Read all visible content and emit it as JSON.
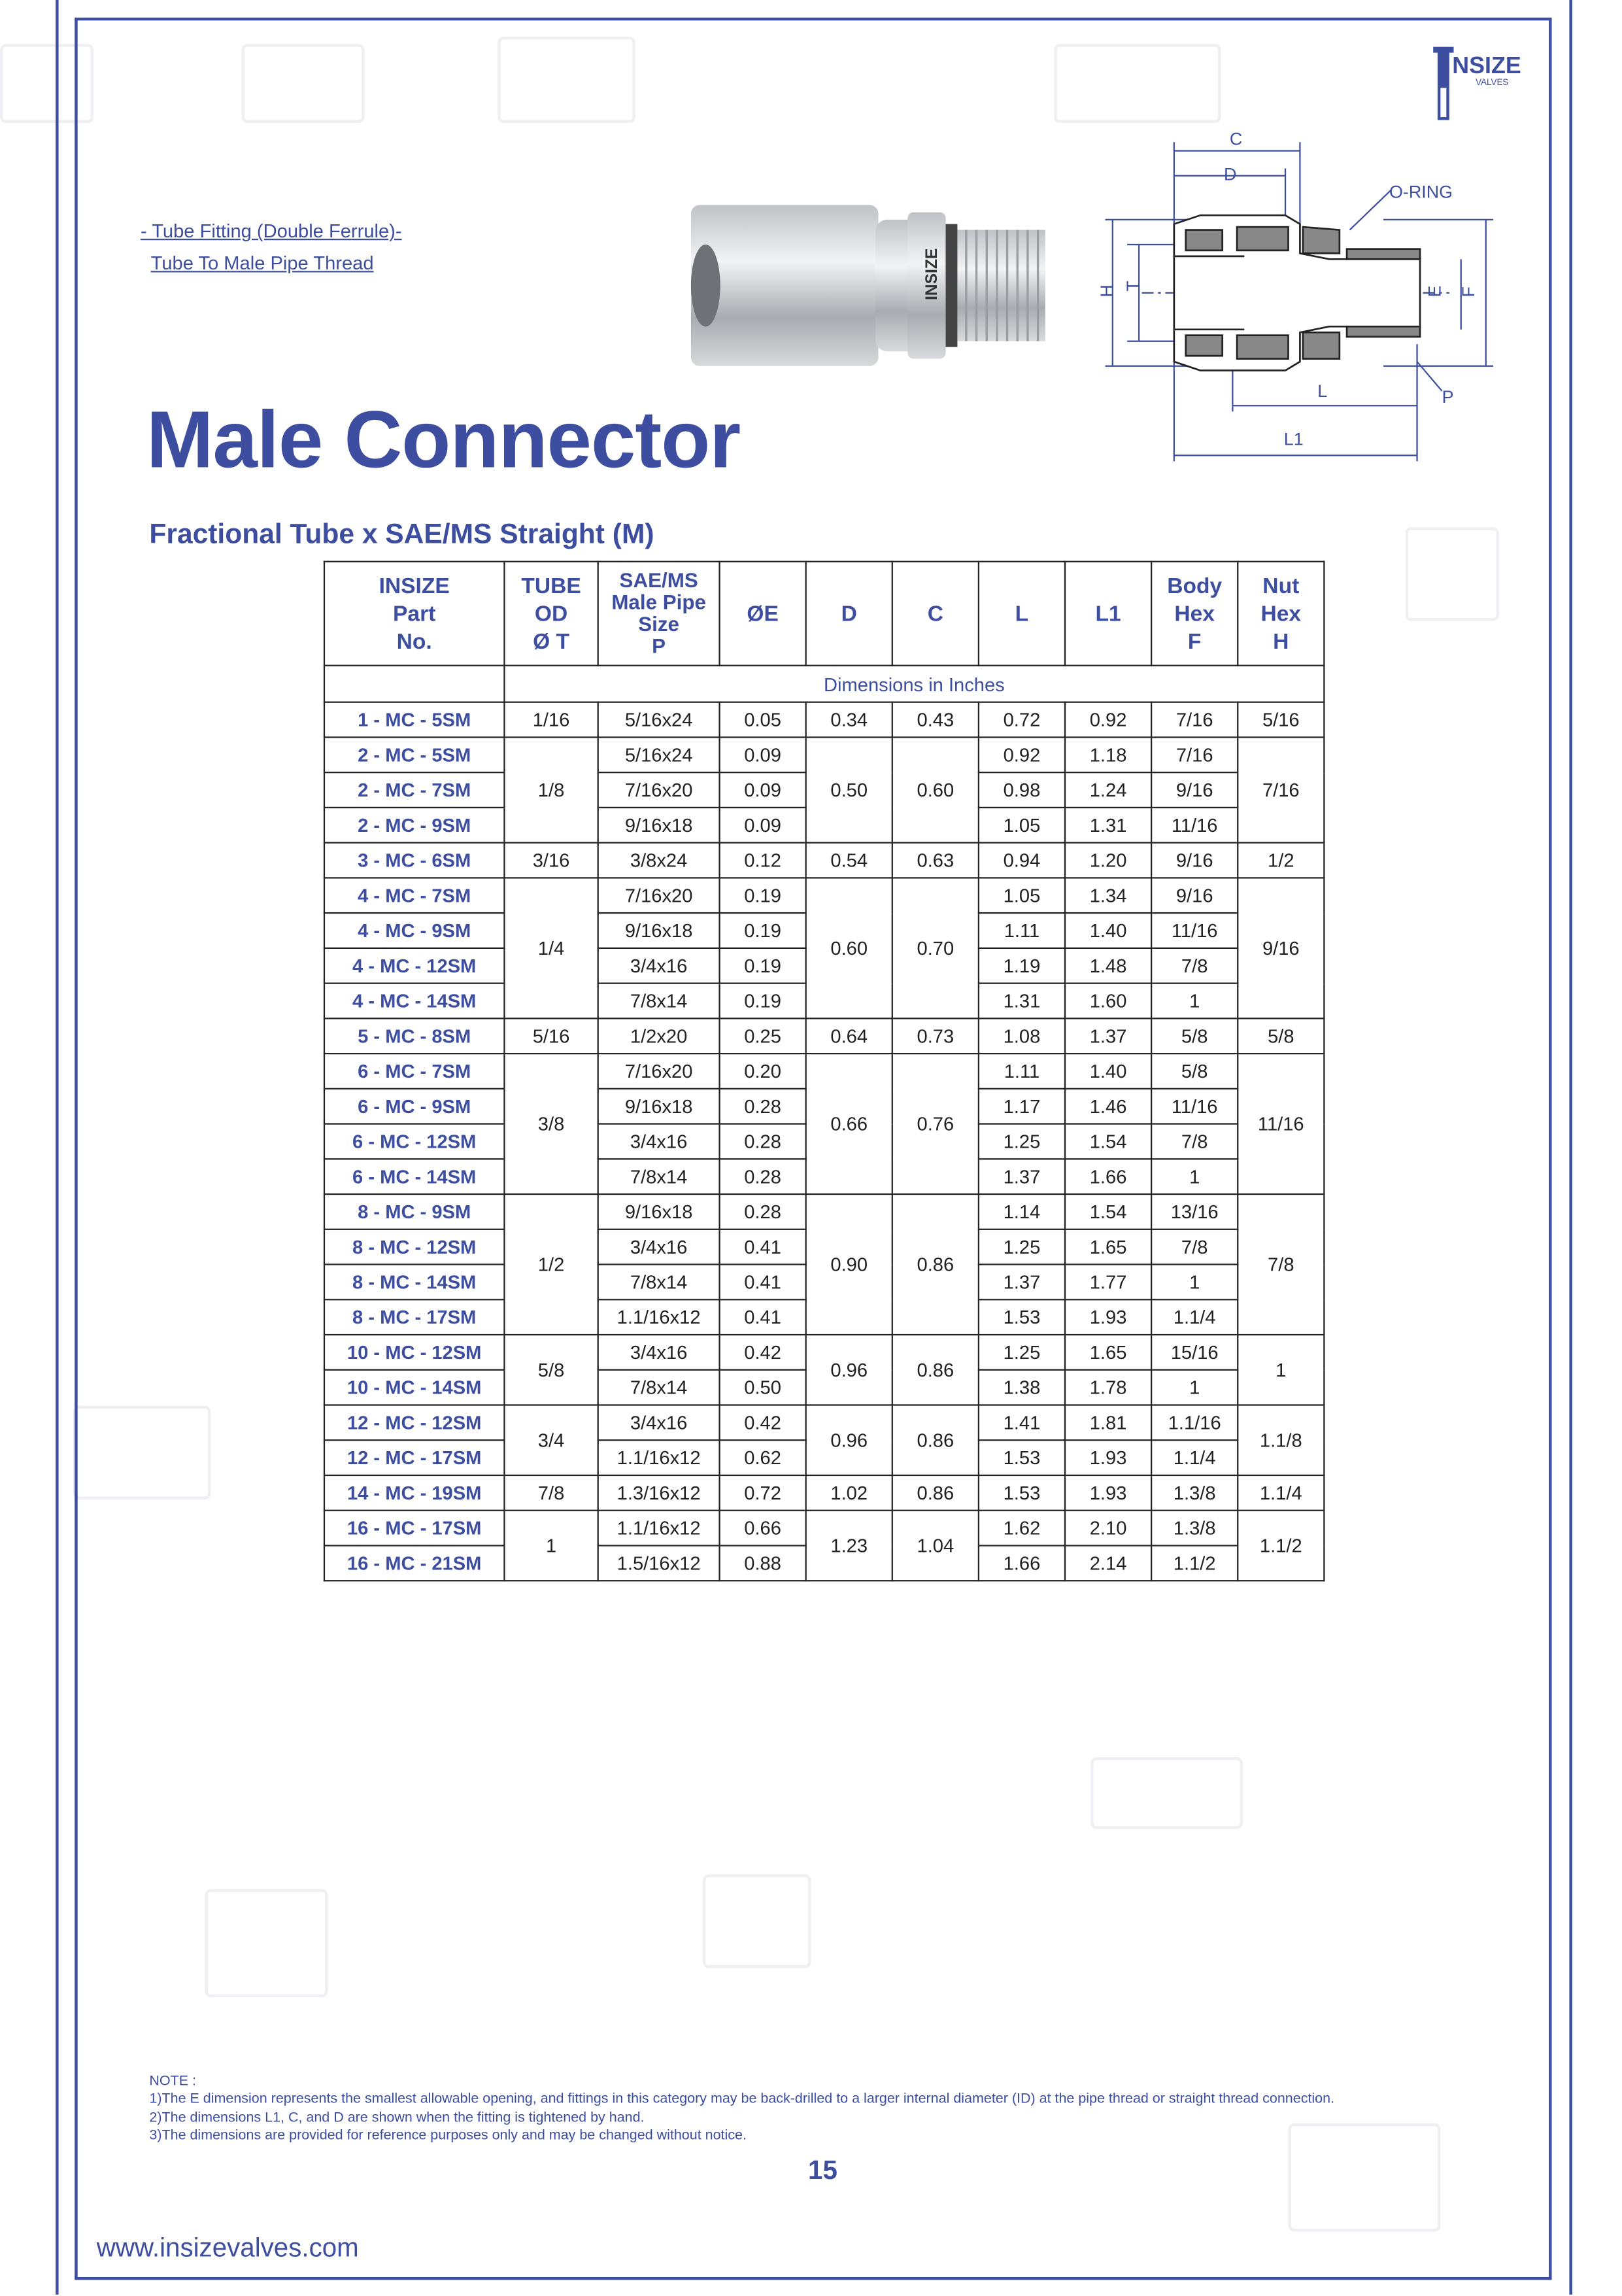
{
  "brand": {
    "logo_text": "INSIZE",
    "logo_subtext": "VALVES",
    "accent_color": "#3d4ea0"
  },
  "header": {
    "category": "- Tube Fitting (Double Ferrule)-",
    "subcategory": "Tube To Male Pipe Thread",
    "title": "Male Connector",
    "subtitle": "Fractional Tube x SAE/MS Straight (M)"
  },
  "photo": {
    "engraving": "INSIZE"
  },
  "diagram": {
    "labels": {
      "c": "C",
      "d": "D",
      "oring": "O-RING",
      "h": "H",
      "t": "T",
      "e": "E",
      "f": "F",
      "l": "L",
      "p": "P",
      "l1": "L1"
    }
  },
  "table": {
    "headers": {
      "part": [
        "INSIZE",
        "Part",
        "No."
      ],
      "tube": [
        "TUBE",
        "OD",
        "Ø T"
      ],
      "pipe": [
        "SAE/MS",
        "Male Pipe",
        "Size",
        "P"
      ],
      "e": "ØE",
      "d": "D",
      "c": "C",
      "l": "L",
      "l1": "L1",
      "body": [
        "Body",
        "Hex",
        "F"
      ],
      "nut": [
        "Nut",
        "Hex",
        "H"
      ]
    },
    "units": "Dimensions in Inches",
    "groups": [
      {
        "tube": "1/16",
        "d": "0.34",
        "c": "0.43",
        "nut": "5/16",
        "items": [
          {
            "part": "1 - MC - 5SM",
            "pipe": "5/16x24",
            "e": "0.05",
            "l": "0.72",
            "l1": "0.92",
            "body": "7/16"
          }
        ]
      },
      {
        "tube": "1/8",
        "d": "0.50",
        "c": "0.60",
        "nut": "7/16",
        "items": [
          {
            "part": "2 - MC - 5SM",
            "pipe": "5/16x24",
            "e": "0.09",
            "l": "0.92",
            "l1": "1.18",
            "body": "7/16"
          },
          {
            "part": "2 - MC - 7SM",
            "pipe": "7/16x20",
            "e": "0.09",
            "l": "0.98",
            "l1": "1.24",
            "body": "9/16"
          },
          {
            "part": "2 - MC - 9SM",
            "pipe": "9/16x18",
            "e": "0.09",
            "l": "1.05",
            "l1": "1.31",
            "body": "11/16"
          }
        ]
      },
      {
        "tube": "3/16",
        "d": "0.54",
        "c": "0.63",
        "nut": "1/2",
        "items": [
          {
            "part": "3 - MC - 6SM",
            "pipe": "3/8x24",
            "e": "0.12",
            "l": "0.94",
            "l1": "1.20",
            "body": "9/16"
          }
        ]
      },
      {
        "tube": "1/4",
        "d": "0.60",
        "c": "0.70",
        "nut": "9/16",
        "items": [
          {
            "part": "4 - MC - 7SM",
            "pipe": "7/16x20",
            "e": "0.19",
            "l": "1.05",
            "l1": "1.34",
            "body": "9/16"
          },
          {
            "part": "4 - MC - 9SM",
            "pipe": "9/16x18",
            "e": "0.19",
            "l": "1.11",
            "l1": "1.40",
            "body": "11/16"
          },
          {
            "part": "4 - MC - 12SM",
            "pipe": "3/4x16",
            "e": "0.19",
            "l": "1.19",
            "l1": "1.48",
            "body": "7/8"
          },
          {
            "part": "4 - MC - 14SM",
            "pipe": "7/8x14",
            "e": "0.19",
            "l": "1.31",
            "l1": "1.60",
            "body": "1"
          }
        ]
      },
      {
        "tube": "5/16",
        "d": "0.64",
        "c": "0.73",
        "nut": "5/8",
        "items": [
          {
            "part": "5 - MC - 8SM",
            "pipe": "1/2x20",
            "e": "0.25",
            "l": "1.08",
            "l1": "1.37",
            "body": "5/8"
          }
        ]
      },
      {
        "tube": "3/8",
        "d": "0.66",
        "c": "0.76",
        "nut": "11/16",
        "items": [
          {
            "part": "6 - MC - 7SM",
            "pipe": "7/16x20",
            "e": "0.20",
            "l": "1.11",
            "l1": "1.40",
            "body": "5/8"
          },
          {
            "part": "6 - MC - 9SM",
            "pipe": "9/16x18",
            "e": "0.28",
            "l": "1.17",
            "l1": "1.46",
            "body": "11/16"
          },
          {
            "part": "6 - MC - 12SM",
            "pipe": "3/4x16",
            "e": "0.28",
            "l": "1.25",
            "l1": "1.54",
            "body": "7/8"
          },
          {
            "part": "6 - MC - 14SM",
            "pipe": "7/8x14",
            "e": "0.28",
            "l": "1.37",
            "l1": "1.66",
            "body": "1"
          }
        ]
      },
      {
        "tube": "1/2",
        "d": "0.90",
        "c": "0.86",
        "nut": "7/8",
        "items": [
          {
            "part": "8 - MC - 9SM",
            "pipe": "9/16x18",
            "e": "0.28",
            "l": "1.14",
            "l1": "1.54",
            "body": "13/16"
          },
          {
            "part": "8 - MC - 12SM",
            "pipe": "3/4x16",
            "e": "0.41",
            "l": "1.25",
            "l1": "1.65",
            "body": "7/8"
          },
          {
            "part": "8 - MC - 14SM",
            "pipe": "7/8x14",
            "e": "0.41",
            "l": "1.37",
            "l1": "1.77",
            "body": "1"
          },
          {
            "part": "8 - MC - 17SM",
            "pipe": "1.1/16x12",
            "e": "0.41",
            "l": "1.53",
            "l1": "1.93",
            "body": "1.1/4"
          }
        ]
      },
      {
        "tube": "5/8",
        "d": "0.96",
        "c": "0.86",
        "nut": "1",
        "items": [
          {
            "part": "10 - MC - 12SM",
            "pipe": "3/4x16",
            "e": "0.42",
            "l": "1.25",
            "l1": "1.65",
            "body": "15/16"
          },
          {
            "part": "10 - MC - 14SM",
            "pipe": "7/8x14",
            "e": "0.50",
            "l": "1.38",
            "l1": "1.78",
            "body": "1"
          }
        ]
      },
      {
        "tube": "3/4",
        "d": "0.96",
        "c": "0.86",
        "nut": "1.1/8",
        "items": [
          {
            "part": "12 - MC - 12SM",
            "pipe": "3/4x16",
            "e": "0.42",
            "l": "1.41",
            "l1": "1.81",
            "body": "1.1/16"
          },
          {
            "part": "12 - MC - 17SM",
            "pipe": "1.1/16x12",
            "e": "0.62",
            "l": "1.53",
            "l1": "1.93",
            "body": "1.1/4"
          }
        ]
      },
      {
        "tube": "7/8",
        "d": "1.02",
        "c": "0.86",
        "nut": "1.1/4",
        "items": [
          {
            "part": "14 - MC - 19SM",
            "pipe": "1.3/16x12",
            "e": "0.72",
            "l": "1.53",
            "l1": "1.93",
            "body": "1.3/8"
          }
        ]
      },
      {
        "tube": "1",
        "d": "1.23",
        "c": "1.04",
        "nut": "1.1/2",
        "items": [
          {
            "part": "16 - MC - 17SM",
            "pipe": "1.1/16x12",
            "e": "0.66",
            "l": "1.62",
            "l1": "2.10",
            "body": "1.3/8"
          },
          {
            "part": "16 - MC - 21SM",
            "pipe": "1.5/16x12",
            "e": "0.88",
            "l": "1.66",
            "l1": "2.14",
            "body": "1.1/2"
          }
        ]
      }
    ]
  },
  "notes": {
    "heading": "NOTE :",
    "items": [
      "1)The E dimension represents the smallest allowable opening, and fittings in this category may be back-drilled to a larger internal diameter (ID) at the pipe thread or straight thread connection.",
      "2)The dimensions L1, C, and D are shown when the fitting is tightened by hand.",
      "3)The dimensions are provided for reference purposes only and may be changed without notice."
    ]
  },
  "footer": {
    "page_number": "15",
    "website": "www.insizevalves.com"
  }
}
